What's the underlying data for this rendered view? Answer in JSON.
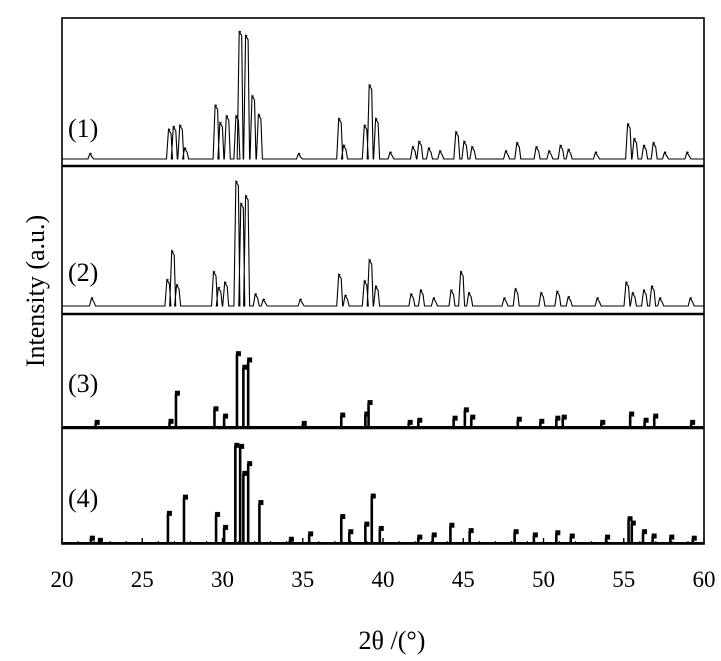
{
  "chart_data": {
    "type": "line",
    "xlabel": "2θ /(°)",
    "ylabel": "Intensity (a.u.)",
    "xlim": [
      20,
      60
    ],
    "xticks": [
      20,
      25,
      30,
      35,
      40,
      45,
      50,
      55,
      60
    ],
    "grid": false,
    "panels": [
      {
        "label": "(1)",
        "style": "line",
        "ylim": [
          0,
          100
        ],
        "peaks": [
          {
            "x": 21.8,
            "y": 4
          },
          {
            "x": 26.7,
            "y": 22
          },
          {
            "x": 27.0,
            "y": 24
          },
          {
            "x": 27.4,
            "y": 25
          },
          {
            "x": 27.7,
            "y": 8
          },
          {
            "x": 29.6,
            "y": 40
          },
          {
            "x": 29.9,
            "y": 27
          },
          {
            "x": 30.3,
            "y": 32
          },
          {
            "x": 30.9,
            "y": 32
          },
          {
            "x": 31.1,
            "y": 95
          },
          {
            "x": 31.5,
            "y": 92
          },
          {
            "x": 31.9,
            "y": 47
          },
          {
            "x": 32.3,
            "y": 33
          },
          {
            "x": 34.8,
            "y": 4
          },
          {
            "x": 37.3,
            "y": 30
          },
          {
            "x": 37.6,
            "y": 10
          },
          {
            "x": 38.9,
            "y": 25
          },
          {
            "x": 39.2,
            "y": 55
          },
          {
            "x": 39.6,
            "y": 30
          },
          {
            "x": 40.5,
            "y": 5
          },
          {
            "x": 41.9,
            "y": 9
          },
          {
            "x": 42.3,
            "y": 13
          },
          {
            "x": 42.9,
            "y": 8
          },
          {
            "x": 43.6,
            "y": 6
          },
          {
            "x": 44.6,
            "y": 20
          },
          {
            "x": 45.1,
            "y": 13
          },
          {
            "x": 45.6,
            "y": 9
          },
          {
            "x": 47.7,
            "y": 6
          },
          {
            "x": 48.4,
            "y": 12
          },
          {
            "x": 49.6,
            "y": 9
          },
          {
            "x": 50.4,
            "y": 6
          },
          {
            "x": 51.1,
            "y": 10
          },
          {
            "x": 51.6,
            "y": 7
          },
          {
            "x": 53.3,
            "y": 5
          },
          {
            "x": 55.3,
            "y": 26
          },
          {
            "x": 55.7,
            "y": 15
          },
          {
            "x": 56.3,
            "y": 10
          },
          {
            "x": 56.9,
            "y": 12
          },
          {
            "x": 57.6,
            "y": 5
          },
          {
            "x": 59.0,
            "y": 5
          }
        ]
      },
      {
        "label": "(2)",
        "style": "line",
        "ylim": [
          0,
          100
        ],
        "peaks": [
          {
            "x": 21.9,
            "y": 6
          },
          {
            "x": 26.6,
            "y": 20
          },
          {
            "x": 26.9,
            "y": 42
          },
          {
            "x": 27.2,
            "y": 16
          },
          {
            "x": 29.5,
            "y": 26
          },
          {
            "x": 29.8,
            "y": 14
          },
          {
            "x": 30.2,
            "y": 18
          },
          {
            "x": 30.9,
            "y": 95
          },
          {
            "x": 31.2,
            "y": 78
          },
          {
            "x": 31.5,
            "y": 84
          },
          {
            "x": 32.1,
            "y": 9
          },
          {
            "x": 32.6,
            "y": 5
          },
          {
            "x": 34.9,
            "y": 5
          },
          {
            "x": 37.3,
            "y": 24
          },
          {
            "x": 37.7,
            "y": 8
          },
          {
            "x": 38.9,
            "y": 19
          },
          {
            "x": 39.2,
            "y": 35
          },
          {
            "x": 39.6,
            "y": 15
          },
          {
            "x": 41.8,
            "y": 9
          },
          {
            "x": 42.4,
            "y": 12
          },
          {
            "x": 43.2,
            "y": 6
          },
          {
            "x": 44.3,
            "y": 12
          },
          {
            "x": 44.9,
            "y": 26
          },
          {
            "x": 45.4,
            "y": 10
          },
          {
            "x": 47.6,
            "y": 6
          },
          {
            "x": 48.3,
            "y": 13
          },
          {
            "x": 49.9,
            "y": 10
          },
          {
            "x": 50.9,
            "y": 11
          },
          {
            "x": 51.6,
            "y": 7
          },
          {
            "x": 53.4,
            "y": 6
          },
          {
            "x": 55.2,
            "y": 18
          },
          {
            "x": 55.6,
            "y": 10
          },
          {
            "x": 56.3,
            "y": 12
          },
          {
            "x": 56.8,
            "y": 15
          },
          {
            "x": 57.3,
            "y": 6
          },
          {
            "x": 59.2,
            "y": 6
          }
        ]
      },
      {
        "label": "(3)",
        "style": "stick",
        "ylim": [
          0,
          100
        ],
        "peaks": [
          {
            "x": 22.1,
            "y": 4
          },
          {
            "x": 26.7,
            "y": 5
          },
          {
            "x": 27.1,
            "y": 32
          },
          {
            "x": 29.5,
            "y": 17
          },
          {
            "x": 30.1,
            "y": 10
          },
          {
            "x": 30.9,
            "y": 70
          },
          {
            "x": 31.3,
            "y": 57
          },
          {
            "x": 31.6,
            "y": 64
          },
          {
            "x": 35.0,
            "y": 3
          },
          {
            "x": 37.4,
            "y": 11
          },
          {
            "x": 38.9,
            "y": 12
          },
          {
            "x": 39.1,
            "y": 23
          },
          {
            "x": 41.6,
            "y": 4
          },
          {
            "x": 42.2,
            "y": 6
          },
          {
            "x": 44.4,
            "y": 8
          },
          {
            "x": 45.1,
            "y": 16
          },
          {
            "x": 45.5,
            "y": 9
          },
          {
            "x": 48.4,
            "y": 7
          },
          {
            "x": 49.8,
            "y": 5
          },
          {
            "x": 50.8,
            "y": 8
          },
          {
            "x": 51.2,
            "y": 9
          },
          {
            "x": 53.6,
            "y": 4
          },
          {
            "x": 55.4,
            "y": 12
          },
          {
            "x": 56.3,
            "y": 6
          },
          {
            "x": 56.9,
            "y": 10
          },
          {
            "x": 59.2,
            "y": 4
          }
        ]
      },
      {
        "label": "(4)",
        "style": "stick",
        "ylim": [
          0,
          100
        ],
        "peaks": [
          {
            "x": 21.8,
            "y": 4
          },
          {
            "x": 22.3,
            "y": 2
          },
          {
            "x": 26.6,
            "y": 27
          },
          {
            "x": 27.6,
            "y": 42
          },
          {
            "x": 29.6,
            "y": 26
          },
          {
            "x": 30.1,
            "y": 14
          },
          {
            "x": 30.8,
            "y": 90
          },
          {
            "x": 31.1,
            "y": 89
          },
          {
            "x": 31.3,
            "y": 64
          },
          {
            "x": 31.6,
            "y": 73
          },
          {
            "x": 32.3,
            "y": 37
          },
          {
            "x": 34.2,
            "y": 3
          },
          {
            "x": 35.4,
            "y": 8
          },
          {
            "x": 37.4,
            "y": 24
          },
          {
            "x": 37.9,
            "y": 10
          },
          {
            "x": 38.9,
            "y": 17
          },
          {
            "x": 39.3,
            "y": 43
          },
          {
            "x": 39.8,
            "y": 13
          },
          {
            "x": 42.2,
            "y": 5
          },
          {
            "x": 43.1,
            "y": 7
          },
          {
            "x": 44.2,
            "y": 16
          },
          {
            "x": 45.4,
            "y": 11
          },
          {
            "x": 48.2,
            "y": 10
          },
          {
            "x": 49.4,
            "y": 7
          },
          {
            "x": 50.8,
            "y": 9
          },
          {
            "x": 51.7,
            "y": 6
          },
          {
            "x": 53.9,
            "y": 5
          },
          {
            "x": 55.3,
            "y": 22
          },
          {
            "x": 55.5,
            "y": 18
          },
          {
            "x": 56.2,
            "y": 10
          },
          {
            "x": 56.8,
            "y": 6
          },
          {
            "x": 57.9,
            "y": 5
          },
          {
            "x": 59.3,
            "y": 4
          }
        ]
      }
    ]
  }
}
